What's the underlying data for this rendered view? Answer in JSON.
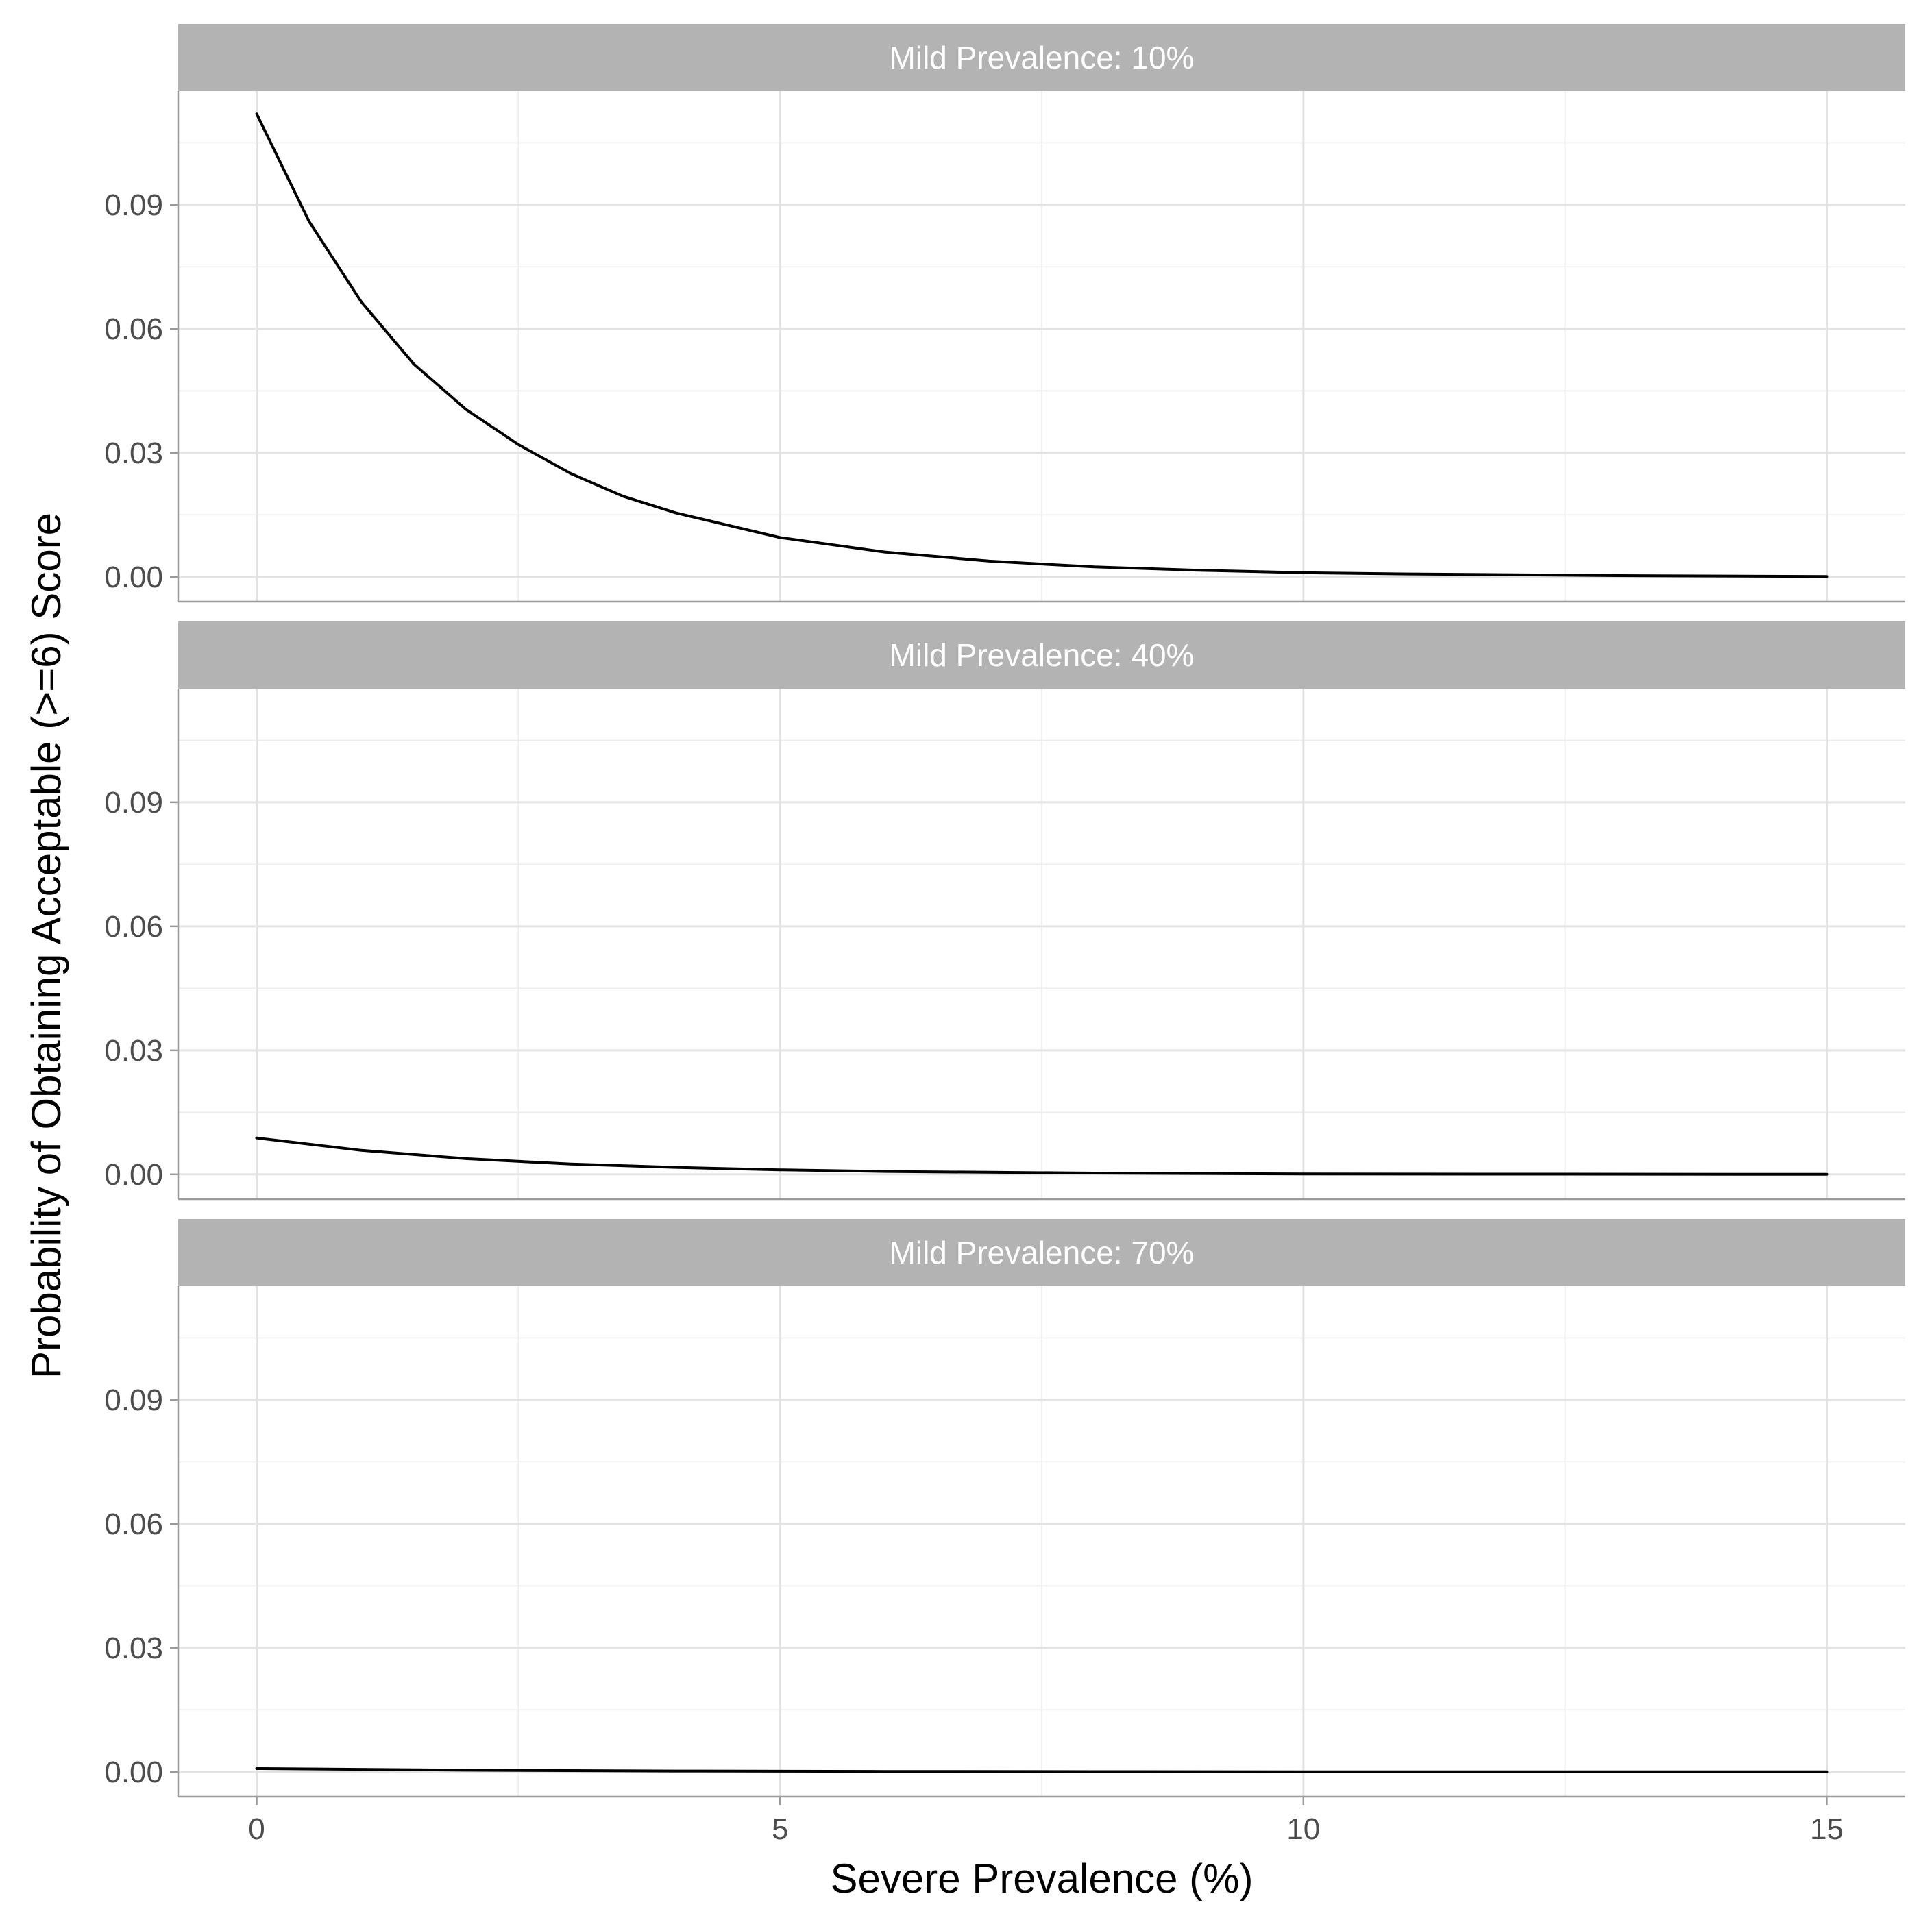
{
  "chart_data": {
    "type": "line",
    "xlabel": "Severe Prevalence (%)",
    "ylabel": "Probability of Obtaining Acceptable (>=6) Score",
    "xlim": [
      -0.75,
      15.75
    ],
    "ylim": [
      -0.006,
      0.1175
    ],
    "x_ticks": [
      0,
      5,
      10,
      15
    ],
    "x_tick_labels": [
      "0",
      "5",
      "10",
      "15"
    ],
    "y_ticks": [
      0,
      0.03,
      0.06,
      0.09
    ],
    "y_tick_labels": [
      "0.00",
      "0.03",
      "0.06",
      "0.09"
    ],
    "grid": true,
    "legend": "none",
    "line_color": "#000000",
    "strip_color": "#b3b3b3",
    "panels": [
      {
        "label": "Mild Prevalence: 10%",
        "x": [
          0,
          0.5,
          1,
          1.5,
          2,
          2.5,
          3,
          3.5,
          4,
          5,
          6,
          7,
          8,
          9,
          10,
          11,
          12,
          13,
          14,
          15
        ],
        "y": [
          0.112,
          0.086,
          0.0665,
          0.0515,
          0.0405,
          0.032,
          0.025,
          0.0195,
          0.0155,
          0.0095,
          0.006,
          0.0038,
          0.0024,
          0.0016,
          0.001,
          0.0007,
          0.0005,
          0.0003,
          0.0002,
          0.0001
        ]
      },
      {
        "label": "Mild Prevalence: 40%",
        "x": [
          0,
          1,
          2,
          3,
          4,
          5,
          6,
          7,
          8,
          10,
          12,
          15
        ],
        "y": [
          0.0088,
          0.0058,
          0.0038,
          0.0025,
          0.0017,
          0.0011,
          0.0007,
          0.0005,
          0.0003,
          0.0001,
          5e-05,
          0.0
        ]
      },
      {
        "label": "Mild Prevalence: 70%",
        "x": [
          0,
          2,
          4,
          6,
          8,
          10,
          15
        ],
        "y": [
          0.0008,
          0.0004,
          0.0002,
          0.0001,
          5e-05,
          0.0,
          0.0
        ]
      }
    ]
  }
}
